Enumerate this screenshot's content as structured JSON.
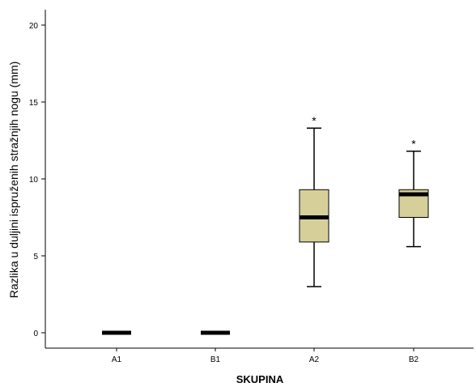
{
  "chart_data": {
    "type": "box",
    "ylabel": "Razlika u duljini ispruženih stražnjih nogu (mm)",
    "xlabel": "SKUPINA",
    "ylim": [
      -1,
      21
    ],
    "yticks": [
      0,
      5,
      10,
      15,
      20
    ],
    "categories": [
      "A1",
      "B1",
      "A2",
      "B2"
    ],
    "box_color": "#d6cf9a",
    "outlier_marker": "*",
    "boxes": [
      {
        "category": "A1",
        "min": 0,
        "q1": 0,
        "median": 0,
        "q3": 0,
        "max": 0,
        "outliers": []
      },
      {
        "category": "B1",
        "min": 0,
        "q1": 0,
        "median": 0,
        "q3": 0,
        "max": 0,
        "outliers": []
      },
      {
        "category": "A2",
        "min": 3.0,
        "q1": 5.9,
        "median": 7.5,
        "q3": 9.3,
        "max": 13.3,
        "outliers": [
          13.9
        ]
      },
      {
        "category": "B2",
        "min": 5.6,
        "q1": 7.5,
        "median": 9.0,
        "q3": 9.3,
        "max": 11.8,
        "outliers": [
          12.4
        ]
      }
    ]
  }
}
